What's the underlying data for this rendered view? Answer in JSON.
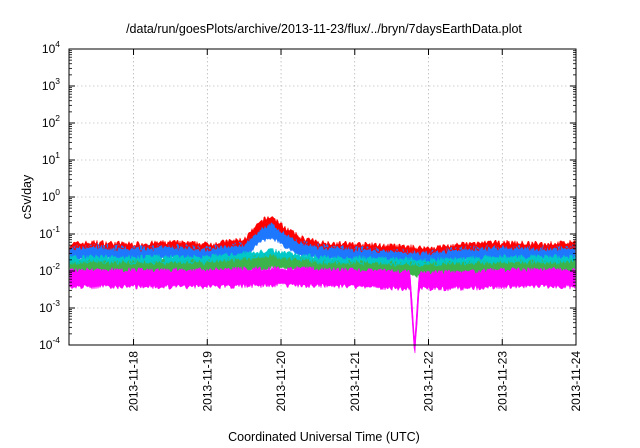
{
  "chart_data": {
    "type": "line",
    "title": "/data/run/goesPlots/archive/2013-11-23/flux/../bryn/7daysEarthData.plot",
    "xlabel": "Coordinated Universal Time (UTC)",
    "ylabel": "cSv/day",
    "yscale": "log",
    "ylim": [
      0.0001,
      10000
    ],
    "xlim": [
      "2013-11-17 03:00",
      "2013-11-24 00:00"
    ],
    "grid": true,
    "legend": "none",
    "x_ticks": [
      "2013-11-18",
      "2013-11-19",
      "2013-11-20",
      "2013-11-21",
      "2013-11-22",
      "2013-11-23",
      "2013-11-24"
    ],
    "y_ticks": [
      {
        "base": "10",
        "exp": "-4",
        "value": 0.0001
      },
      {
        "base": "10",
        "exp": "-3",
        "value": 0.001
      },
      {
        "base": "10",
        "exp": "-2",
        "value": 0.01
      },
      {
        "base": "10",
        "exp": "-1",
        "value": 0.1
      },
      {
        "base": "10",
        "exp": "0",
        "value": 1
      },
      {
        "base": "10",
        "exp": "1",
        "value": 10
      },
      {
        "base": "10",
        "exp": "2",
        "value": 100
      },
      {
        "base": "10",
        "exp": "3",
        "value": 1000
      },
      {
        "base": "10",
        "exp": "4",
        "value": 10000
      }
    ],
    "series": [
      {
        "color": "#ff0000",
        "points": [
          {
            "x": "2013-11-17 03:00",
            "y": 0.045
          },
          {
            "x": "2013-11-17 12:00",
            "y": 0.05
          },
          {
            "x": "2013-11-18 00:00",
            "y": 0.045
          },
          {
            "x": "2013-11-18 12:00",
            "y": 0.05
          },
          {
            "x": "2013-11-19 00:00",
            "y": 0.045
          },
          {
            "x": "2013-11-19 12:00",
            "y": 0.06
          },
          {
            "x": "2013-11-19 18:00",
            "y": 0.2
          },
          {
            "x": "2013-11-19 21:00",
            "y": 0.25
          },
          {
            "x": "2013-11-20 00:00",
            "y": 0.15
          },
          {
            "x": "2013-11-20 06:00",
            "y": 0.07
          },
          {
            "x": "2013-11-20 12:00",
            "y": 0.05
          },
          {
            "x": "2013-11-21 00:00",
            "y": 0.045
          },
          {
            "x": "2013-11-21 12:00",
            "y": 0.04
          },
          {
            "x": "2013-11-22 00:00",
            "y": 0.035
          },
          {
            "x": "2013-11-22 12:00",
            "y": 0.045
          },
          {
            "x": "2013-11-23 00:00",
            "y": 0.05
          },
          {
            "x": "2013-11-23 12:00",
            "y": 0.045
          },
          {
            "x": "2013-11-24 00:00",
            "y": 0.05
          }
        ]
      },
      {
        "color": "#1e78ff",
        "points": [
          {
            "x": "2013-11-17 03:00",
            "y": 0.035
          },
          {
            "x": "2013-11-17 12:00",
            "y": 0.04
          },
          {
            "x": "2013-11-18 00:00",
            "y": 0.035
          },
          {
            "x": "2013-11-18 12:00",
            "y": 0.04
          },
          {
            "x": "2013-11-19 00:00",
            "y": 0.035
          },
          {
            "x": "2013-11-19 12:00",
            "y": 0.045
          },
          {
            "x": "2013-11-19 18:00",
            "y": 0.12
          },
          {
            "x": "2013-11-19 21:00",
            "y": 0.15
          },
          {
            "x": "2013-11-20 00:00",
            "y": 0.1
          },
          {
            "x": "2013-11-20 06:00",
            "y": 0.05
          },
          {
            "x": "2013-11-20 12:00",
            "y": 0.04
          },
          {
            "x": "2013-11-21 00:00",
            "y": 0.035
          },
          {
            "x": "2013-11-21 12:00",
            "y": 0.03
          },
          {
            "x": "2013-11-22 00:00",
            "y": 0.027
          },
          {
            "x": "2013-11-22 12:00",
            "y": 0.035
          },
          {
            "x": "2013-11-23 00:00",
            "y": 0.038
          },
          {
            "x": "2013-11-23 12:00",
            "y": 0.035
          },
          {
            "x": "2013-11-24 00:00",
            "y": 0.038
          }
        ]
      },
      {
        "color": "#00c8c8",
        "points": [
          {
            "x": "2013-11-17 03:00",
            "y": 0.02
          },
          {
            "x": "2013-11-18 00:00",
            "y": 0.02
          },
          {
            "x": "2013-11-19 00:00",
            "y": 0.02
          },
          {
            "x": "2013-11-19 21:00",
            "y": 0.03
          },
          {
            "x": "2013-11-20 12:00",
            "y": 0.02
          },
          {
            "x": "2013-11-21 12:00",
            "y": 0.018
          },
          {
            "x": "2013-11-22 00:00",
            "y": 0.017
          },
          {
            "x": "2013-11-23 00:00",
            "y": 0.02
          },
          {
            "x": "2013-11-24 00:00",
            "y": 0.02
          }
        ]
      },
      {
        "color": "#3cb44b",
        "points": [
          {
            "x": "2013-11-17 03:00",
            "y": 0.015
          },
          {
            "x": "2013-11-18 00:00",
            "y": 0.015
          },
          {
            "x": "2013-11-19 00:00",
            "y": 0.015
          },
          {
            "x": "2013-11-19 21:00",
            "y": 0.022
          },
          {
            "x": "2013-11-20 12:00",
            "y": 0.015
          },
          {
            "x": "2013-11-21 12:00",
            "y": 0.014
          },
          {
            "x": "2013-11-22 00:00",
            "y": 0.013
          },
          {
            "x": "2013-11-23 00:00",
            "y": 0.015
          },
          {
            "x": "2013-11-24 00:00",
            "y": 0.015
          }
        ]
      },
      {
        "color": "#ff00ff",
        "points": [
          {
            "x": "2013-11-17 03:00",
            "y": 0.009
          },
          {
            "x": "2013-11-18 00:00",
            "y": 0.009
          },
          {
            "x": "2013-11-19 00:00",
            "y": 0.009
          },
          {
            "x": "2013-11-20 00:00",
            "y": 0.01
          },
          {
            "x": "2013-11-21 00:00",
            "y": 0.009
          },
          {
            "x": "2013-11-21 18:00",
            "y": 0.008
          },
          {
            "x": "2013-11-21 19:30",
            "y": 0.0001
          },
          {
            "x": "2013-11-21 21:00",
            "y": 0.008
          },
          {
            "x": "2013-11-22 12:00",
            "y": 0.008
          },
          {
            "x": "2013-11-23 00:00",
            "y": 0.009
          },
          {
            "x": "2013-11-24 00:00",
            "y": 0.009
          }
        ]
      }
    ]
  }
}
